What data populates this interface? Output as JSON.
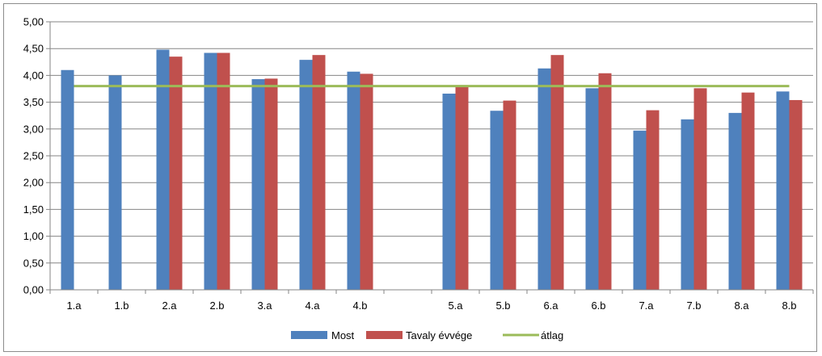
{
  "chart_data": {
    "type": "bar",
    "categories": [
      "1.a",
      "1.b",
      "2.a",
      "2.b",
      "3.a",
      "4.a",
      "4.b",
      "",
      "5.a",
      "5.b",
      "6.a",
      "6.b",
      "7.a",
      "7.b",
      "8.a",
      "8.b"
    ],
    "series": [
      {
        "name": "Most",
        "color": "#4f81bd",
        "values": [
          4.1,
          4.0,
          4.48,
          4.42,
          3.93,
          4.29,
          4.07,
          null,
          3.66,
          3.34,
          4.13,
          3.76,
          2.97,
          3.18,
          3.3,
          3.7
        ]
      },
      {
        "name": "Tavaly évvége",
        "color": "#c0504d",
        "values": [
          null,
          null,
          4.35,
          4.42,
          3.94,
          4.38,
          4.03,
          null,
          3.78,
          3.53,
          4.38,
          4.04,
          3.35,
          3.76,
          3.68,
          3.54
        ]
      }
    ],
    "line": {
      "name": "átlag",
      "type": "line",
      "color": "#9bbb59",
      "value": 3.8
    },
    "y_ticks": [
      "0,00",
      "0,50",
      "1,00",
      "1,50",
      "2,00",
      "2,50",
      "3,00",
      "3,50",
      "4,00",
      "4,50",
      "5,00"
    ],
    "ylim": [
      0,
      5
    ],
    "ytick_step": 0.5,
    "grid": true,
    "legend": "bottom",
    "title": "",
    "xlabel": "",
    "ylabel": ""
  }
}
